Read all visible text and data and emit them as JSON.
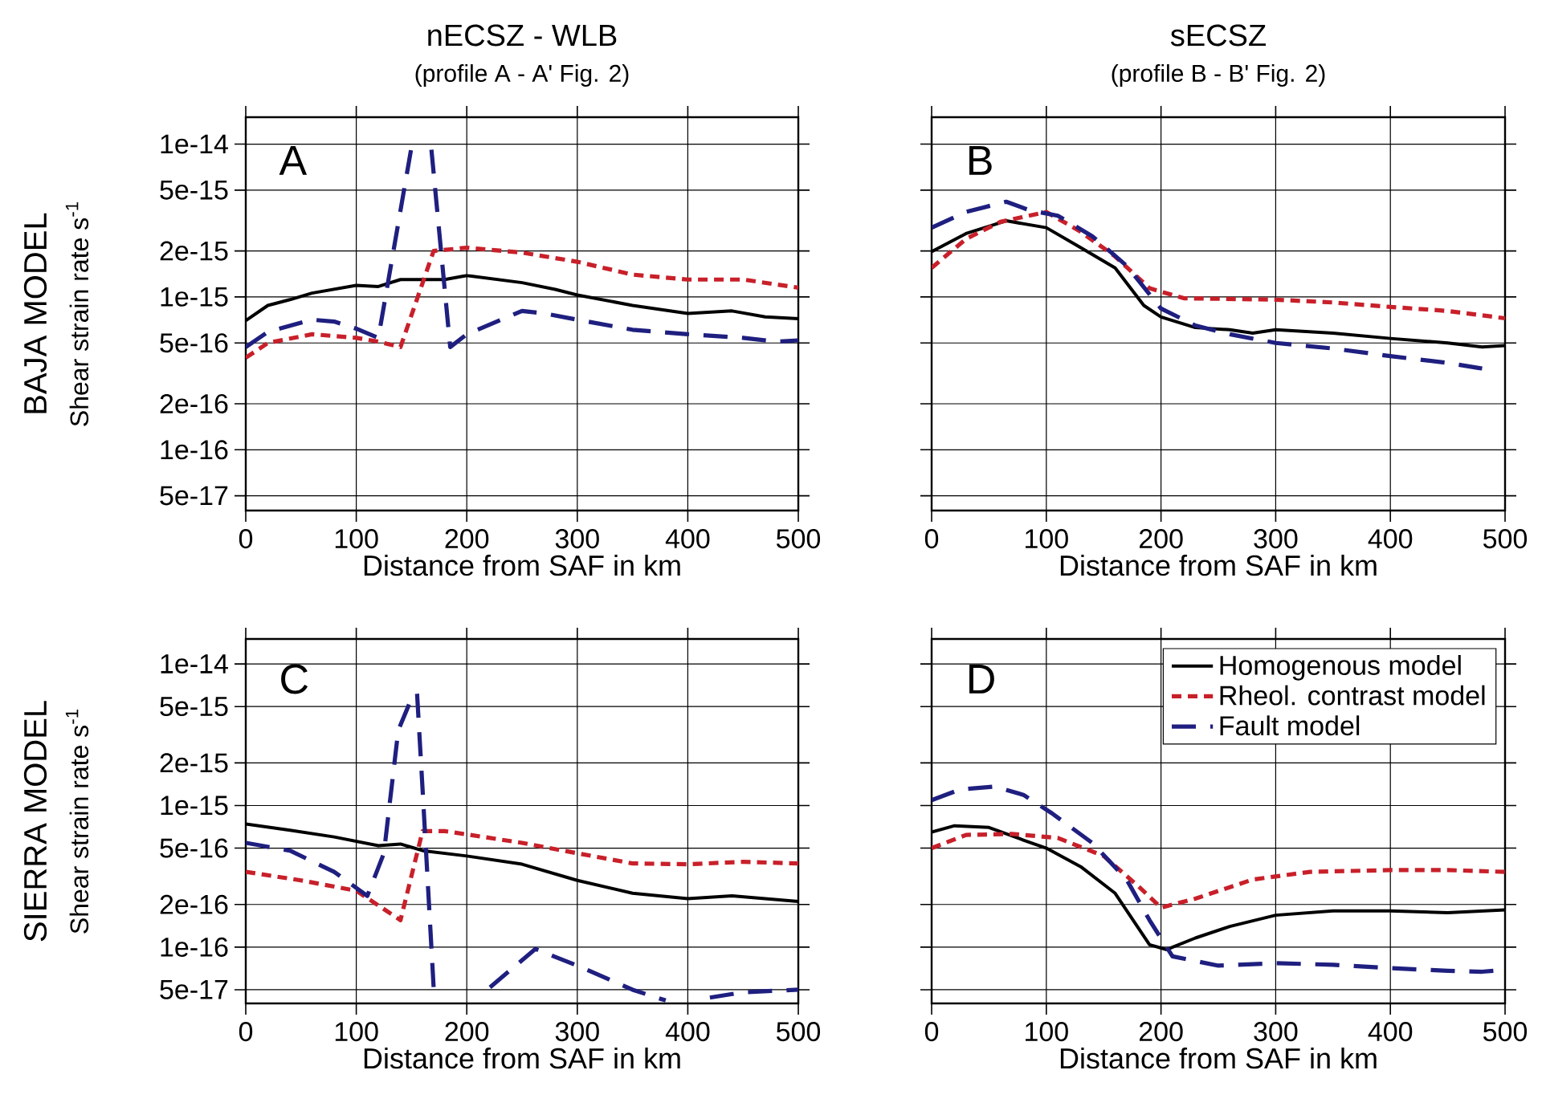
{
  "chart_data": [
    {
      "type": "line",
      "title": "nECSZ - WLB",
      "subtitle": "(profile A - A' Fig. 2)",
      "xlabel": "Distance from SAF in km",
      "ylabel": "Shear strain rate s$^{-1}$",
      "annotations": [
        "A",
        "BAJA MODEL"
      ],
      "xlim": [
        0,
        500
      ],
      "xticks": [
        0,
        100,
        200,
        300,
        400,
        500
      ],
      "ylim": [
        4e-17,
        1.5e-14
      ],
      "yticks": [
        {
          "value": 5e-17,
          "label": "5e-17"
        },
        {
          "value": 1e-16,
          "label": "1e-16"
        },
        {
          "value": 2e-16,
          "label": "2e-16"
        },
        {
          "value": 5e-16,
          "label": "5e-16"
        },
        {
          "value": 1e-15,
          "label": "1e-15"
        },
        {
          "value": 2e-15,
          "label": "2e-15"
        },
        {
          "value": 5e-15,
          "label": "5e-15"
        },
        {
          "value": 1e-14,
          "label": "1e-14"
        }
      ],
      "log": "y",
      "grid": true,
      "series": [
        {
          "color": "#000000",
          "line_style": "solid",
          "x": [
            0,
            20,
            40,
            60,
            100,
            120,
            140,
            180,
            200,
            250,
            280,
            300,
            350,
            400,
            440,
            470,
            500
          ],
          "values": [
            7e-16,
            8.8e-16,
            9.6e-16,
            1.06e-15,
            1.19e-15,
            1.17e-15,
            1.3e-15,
            1.3e-15,
            1.38e-15,
            1.24e-15,
            1.12e-15,
            1.03e-15,
            8.8e-16,
            7.8e-16,
            8.1e-16,
            7.4e-16,
            7.2e-16
          ]
        },
        {
          "color": "#c8202a",
          "line_style": "dotted",
          "x": [
            0,
            20,
            60,
            100,
            120,
            140,
            170,
            200,
            250,
            300,
            350,
            400,
            450,
            500
          ],
          "values": [
            4e-16,
            5e-16,
            5.7e-16,
            5.4e-16,
            5.1e-16,
            4.7e-16,
            2e-15,
            2.1e-15,
            1.95e-15,
            1.7e-15,
            1.4e-15,
            1.3e-15,
            1.3e-15,
            1.15e-15
          ]
        },
        {
          "color": "#1f1f80",
          "line_style": "dashed",
          "x": [
            0,
            20,
            60,
            80,
            100,
            120,
            150,
            160,
            168,
            185,
            200,
            250,
            270,
            300,
            350,
            400,
            450,
            480,
            500
          ],
          "values": [
            4.7e-16,
            5.9e-16,
            7.1e-16,
            6.9e-16,
            6.2e-16,
            5.4e-16,
            9.6e-15,
            null,
            9.2e-15,
            4.7e-16,
            5.7e-16,
            8.1e-16,
            7.8e-16,
            7.1e-16,
            6.1e-16,
            5.7e-16,
            5.4e-16,
            5.1e-16,
            5.2e-16
          ]
        }
      ]
    },
    {
      "type": "line",
      "title": "sECSZ",
      "subtitle": "(profile B - B' Fig. 2)",
      "xlabel": "Distance from SAF in km",
      "annotations": [
        "B"
      ],
      "xlim": [
        0,
        500
      ],
      "xticks": [
        0,
        100,
        200,
        300,
        400,
        500
      ],
      "ylim": [
        4e-17,
        1.5e-14
      ],
      "yticks": [
        {
          "value": 5e-17,
          "label": null
        },
        {
          "value": 1e-16,
          "label": null
        },
        {
          "value": 2e-16,
          "label": null
        },
        {
          "value": 5e-16,
          "label": null
        },
        {
          "value": 1e-15,
          "label": null
        },
        {
          "value": 2e-15,
          "label": null
        },
        {
          "value": 5e-15,
          "label": null
        },
        {
          "value": 1e-14,
          "label": null
        }
      ],
      "log": "y",
      "grid": true,
      "tick_labels": "x",
      "series": [
        {
          "color": "#000000",
          "line_style": "solid",
          "x": [
            0,
            30,
            65,
            100,
            130,
            160,
            185,
            200,
            230,
            260,
            280,
            300,
            350,
            400,
            450,
            480,
            500
          ],
          "values": [
            1.98e-15,
            2.6e-15,
            3.15e-15,
            2.84e-15,
            2.1e-15,
            1.55e-15,
            8.8e-16,
            7.4e-16,
            6.3e-16,
            6.1e-16,
            5.8e-16,
            6.1e-16,
            5.8e-16,
            5.35e-16,
            5e-16,
            4.7e-16,
            4.8e-16
          ]
        },
        {
          "color": "#c8202a",
          "line_style": "dotted",
          "x": [
            0,
            30,
            60,
            100,
            130,
            160,
            190,
            220,
            300,
            350,
            400,
            450,
            500
          ],
          "values": [
            1.55e-15,
            2.4e-15,
            3.1e-15,
            3.6e-15,
            2.67e-15,
            1.84e-15,
            1.14e-15,
            9.8e-16,
            9.6e-16,
            9.2e-16,
            8.6e-16,
            8.1e-16,
            7.25e-16
          ]
        },
        {
          "color": "#1f1f80",
          "line_style": "dashed",
          "x": [
            0,
            30,
            65,
            85,
            110,
            140,
            170,
            200,
            230,
            260,
            300,
            350,
            400,
            450,
            480
          ],
          "values": [
            2.84e-15,
            3.6e-15,
            4.2e-15,
            3.7e-15,
            3.4e-15,
            2.5e-15,
            1.6e-15,
            8.4e-16,
            6.5e-16,
            5.7e-16,
            5e-16,
            4.6e-16,
            4.1e-16,
            3.7e-16,
            3.4e-16
          ]
        }
      ]
    },
    {
      "type": "line",
      "xlabel": "Distance from SAF in km",
      "ylabel": "Shear strain rate s$^{-1}$",
      "annotations": [
        "C",
        "SIERRA MODEL"
      ],
      "xlim": [
        0,
        500
      ],
      "xticks": [
        0,
        100,
        200,
        300,
        400,
        500
      ],
      "ylim": [
        4e-17,
        1.5e-14
      ],
      "yticks": [
        {
          "value": 5e-17,
          "label": "5e-17"
        },
        {
          "value": 1e-16,
          "label": "1e-16"
        },
        {
          "value": 2e-16,
          "label": "2e-16"
        },
        {
          "value": 5e-16,
          "label": "5e-16"
        },
        {
          "value": 1e-15,
          "label": "1e-15"
        },
        {
          "value": 2e-15,
          "label": "2e-15"
        },
        {
          "value": 5e-15,
          "label": "5e-15"
        },
        {
          "value": 1e-14,
          "label": "1e-14"
        }
      ],
      "log": "y",
      "grid": true,
      "series": [
        {
          "color": "#000000",
          "line_style": "solid",
          "x": [
            0,
            40,
            80,
            120,
            140,
            160,
            200,
            250,
            300,
            350,
            400,
            440,
            500
          ],
          "values": [
            7.4e-16,
            6.7e-16,
            6e-16,
            5.2e-16,
            5.35e-16,
            4.8e-16,
            4.4e-16,
            3.85e-16,
            2.96e-16,
            2.4e-16,
            2.2e-16,
            2.3e-16,
            2.1e-16
          ]
        },
        {
          "color": "#c8202a",
          "line_style": "dotted",
          "x": [
            0,
            50,
            100,
            140,
            160,
            180,
            250,
            300,
            350,
            400,
            450,
            500
          ],
          "values": [
            3.4e-16,
            2.96e-16,
            2.5e-16,
            1.55e-16,
            6.6e-16,
            6.6e-16,
            5.45e-16,
            4.6e-16,
            3.9e-16,
            3.85e-16,
            4e-16,
            3.9e-16
          ]
        },
        {
          "color": "#1f1f80",
          "line_style": "dashed",
          "x": [
            0,
            40,
            80,
            110,
            125,
            138,
            150,
            155,
            160,
            170,
            175,
            185,
            199,
            221,
            262,
            300,
            350,
            380,
            400,
            420,
            450,
            500
          ],
          "values": [
            5.45e-16,
            4.8e-16,
            3.4e-16,
            2.3e-16,
            4.6e-16,
            3.4e-15,
            5.7e-15,
            6.2e-15,
            1.3e-15,
            5.2e-17,
            null,
            null,
            null,
            5.2e-17,
            9.7e-17,
            7.4e-17,
            5e-17,
            4.2e-17,
            null,
            4.4e-17,
            4.8e-17,
            5e-17
          ]
        }
      ]
    },
    {
      "type": "line",
      "xlabel": "Distance from SAF in km",
      "annotations": [
        "D"
      ],
      "xlim": [
        0,
        500
      ],
      "xticks": [
        0,
        100,
        200,
        300,
        400,
        500
      ],
      "ylim": [
        4e-17,
        1.5e-14
      ],
      "yticks": [
        {
          "value": 5e-17,
          "label": null
        },
        {
          "value": 1e-16,
          "label": null
        },
        {
          "value": 2e-16,
          "label": null
        },
        {
          "value": 5e-16,
          "label": null
        },
        {
          "value": 1e-15,
          "label": null
        },
        {
          "value": 2e-15,
          "label": null
        },
        {
          "value": 5e-15,
          "label": null
        },
        {
          "value": 1e-14,
          "label": null
        }
      ],
      "log": "y",
      "grid": true,
      "tick_labels": "x",
      "legend": "top right",
      "series": [
        {
          "name": "Homogenous model",
          "color": "#000000",
          "line_style": "solid",
          "x": [
            0,
            20,
            50,
            80,
            100,
            130,
            160,
            190,
            205,
            230,
            260,
            300,
            350,
            400,
            450,
            500
          ],
          "values": [
            6.5e-16,
            7.2e-16,
            7e-16,
            5.7e-16,
            5e-16,
            3.7e-16,
            2.4e-16,
            1.04e-16,
            9.6e-17,
            1.16e-16,
            1.4e-16,
            1.68e-16,
            1.8e-16,
            1.8e-16,
            1.75e-16,
            1.83e-16
          ]
        },
        {
          "name": "Rheol. contrast model",
          "color": "#c8202a",
          "line_style": "dotted",
          "x": [
            0,
            30,
            70,
            110,
            150,
            180,
            200,
            230,
            280,
            330,
            400,
            450,
            500
          ],
          "values": [
            5e-16,
            6.2e-16,
            6.3e-16,
            5.9e-16,
            4.4e-16,
            2.7e-16,
            1.9e-16,
            2.2e-16,
            3e-16,
            3.4e-16,
            3.5e-16,
            3.5e-16,
            3.4e-16
          ]
        },
        {
          "name": "Fault model",
          "color": "#1f1f80",
          "line_style": "dashed",
          "x": [
            0,
            25,
            55,
            80,
            105,
            140,
            170,
            190,
            210,
            250,
            300,
            350,
            400,
            450,
            480,
            500
          ],
          "values": [
            1.09e-15,
            1.3e-15,
            1.36e-15,
            1.19e-15,
            8.8e-16,
            5.45e-16,
            3e-16,
            1.55e-16,
            8.6e-17,
            7.4e-17,
            7.7e-17,
            7.5e-17,
            7.1e-17,
            6.8e-17,
            6.7e-17,
            6.9e-17
          ]
        }
      ]
    }
  ]
}
